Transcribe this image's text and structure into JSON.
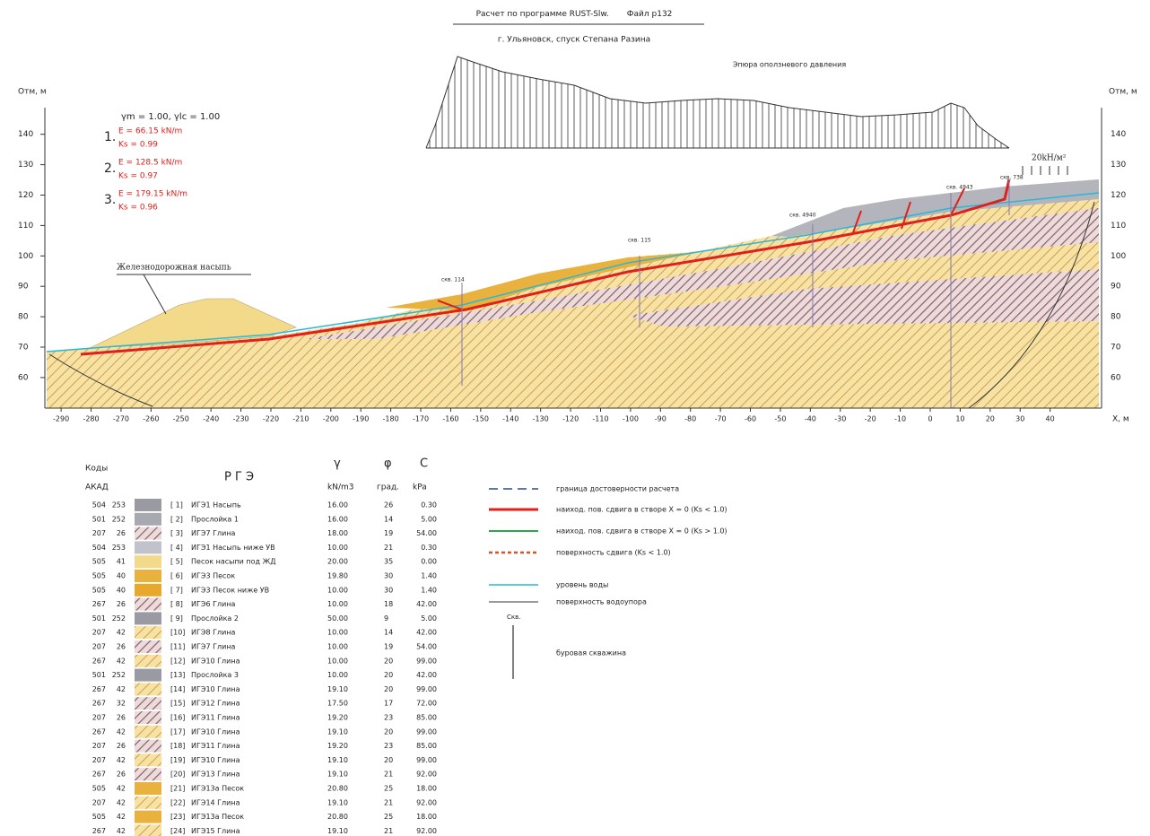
{
  "header": {
    "title": "Расчет по программе RUST-Slw.",
    "file": "Файл p132",
    "location": "г. Ульяновск, спуск Степана Разина"
  },
  "epure": {
    "title": "Эпюра оползневого давления",
    "load": "20kH/м²"
  },
  "axes": {
    "y_label_left": "Отм, м",
    "y_label_right": "Отм, м",
    "x_label": "X, м",
    "yticks": [
      60,
      70,
      80,
      90,
      100,
      110,
      120,
      130,
      140
    ],
    "xticks": [
      -290,
      -280,
      -270,
      -260,
      -250,
      -240,
      -230,
      -220,
      -210,
      -200,
      -190,
      -180,
      -170,
      -160,
      -150,
      -140,
      -130,
      -120,
      -110,
      -100,
      -90,
      -80,
      -70,
      -60,
      -50,
      -40,
      -30,
      -20,
      -10,
      0,
      10,
      20,
      30,
      40
    ]
  },
  "factors": "γm = 1.00, γlc = 1.00",
  "results": [
    {
      "number": "1.",
      "E": "E = 66.15 kN/m",
      "Ks": "Ks = 0.99"
    },
    {
      "number": "2.",
      "E": "E = 128.5 kN/m",
      "Ks": "Ks = 0.97"
    },
    {
      "number": "3.",
      "E": "E = 179.15 kN/m",
      "Ks": "Ks = 0.96"
    }
  ],
  "embankment": "Железнодорожная насыпь",
  "boreholes": [
    "скв. 114",
    "скв. 115",
    "скв. 4940",
    "скв. 4943",
    "скв. 738"
  ],
  "soil_table": {
    "codes": "Коды",
    "acad": "АКАД",
    "rge": "Р Г Э",
    "gamma": "γ",
    "phi": "φ",
    "c": "C",
    "gamma_unit": "kN/m3",
    "phi_unit": "град.",
    "c_unit": "kPa",
    "rows": [
      [
        "504",
        "253",
        "[ 1]",
        "ИГЭ1 Насыпь",
        "16.00",
        "26",
        "0.30"
      ],
      [
        "501",
        "252",
        "[ 2]",
        "Прослойка 1",
        "16.00",
        "14",
        "5.00"
      ],
      [
        "207",
        "26",
        "[ 3]",
        "ИГЭ7 Глина",
        "18.00",
        "19",
        "54.00"
      ],
      [
        "504",
        "253",
        "[ 4]",
        "ИГЭ1 Насыпь ниже УВ",
        "10.00",
        "21",
        "0.30"
      ],
      [
        "505",
        "41",
        "[ 5]",
        "Песок насыпи под ЖД",
        "20.00",
        "35",
        "0.00"
      ],
      [
        "505",
        "40",
        "[ 6]",
        "ИГЭ3 Песок",
        "19.80",
        "30",
        "1.40"
      ],
      [
        "505",
        "40",
        "[ 7]",
        "ИГЭ3 Песок ниже УВ",
        "10.00",
        "30",
        "1.40"
      ],
      [
        "267",
        "26",
        "[ 8]",
        "ИГЭ6 Глина",
        "10.00",
        "18",
        "42.00"
      ],
      [
        "501",
        "252",
        "[ 9]",
        "Прослойка 2",
        "50.00",
        "9",
        "5.00"
      ],
      [
        "207",
        "42",
        "[10]",
        "ИГЭ8 Глина",
        "10.00",
        "14",
        "42.00"
      ],
      [
        "207",
        "26",
        "[11]",
        "ИГЭ7 Глина",
        "10.00",
        "19",
        "54.00"
      ],
      [
        "267",
        "42",
        "[12]",
        "ИГЭ10 Глина",
        "10.00",
        "20",
        "99.00"
      ],
      [
        "501",
        "252",
        "[13]",
        "Прослойка 3",
        "10.00",
        "20",
        "42.00"
      ],
      [
        "267",
        "42",
        "[14]",
        "ИГЭ10 Глина",
        "19.10",
        "20",
        "99.00"
      ],
      [
        "267",
        "32",
        "[15]",
        "ИГЭ12 Глина",
        "17.50",
        "17",
        "72.00"
      ],
      [
        "207",
        "26",
        "[16]",
        "ИГЭ11 Глина",
        "19.20",
        "23",
        "85.00"
      ],
      [
        "267",
        "42",
        "[17]",
        "ИГЭ10 Глина",
        "19.10",
        "20",
        "99.00"
      ],
      [
        "207",
        "26",
        "[18]",
        "ИГЭ11 Глина",
        "19.20",
        "23",
        "85.00"
      ],
      [
        "207",
        "42",
        "[19]",
        "ИГЭ10 Глина",
        "19.10",
        "20",
        "99.00"
      ],
      [
        "267",
        "26",
        "[20]",
        "ИГЭ13 Глина",
        "19.10",
        "21",
        "92.00"
      ],
      [
        "505",
        "42",
        "[21]",
        "ИГЭ13а Песок",
        "20.80",
        "25",
        "18.00"
      ],
      [
        "207",
        "42",
        "[22]",
        "ИГЭ14 Глина",
        "19.10",
        "21",
        "92.00"
      ],
      [
        "505",
        "42",
        "[23]",
        "ИГЭ13а Песок",
        "20.80",
        "25",
        "18.00"
      ],
      [
        "267",
        "42",
        "[24]",
        "ИГЭ15 Глина",
        "19.10",
        "21",
        "92.00"
      ]
    ]
  },
  "legend": {
    "items": [
      "граница достоверности расчета",
      "наиход. пов. сдвига в створе X = 0 (Ks < 1.0)",
      "наиход. пов. сдвига в створе X = 0 (Ks > 1.0)",
      "поверхность сдвига (Ks < 1.0)",
      "уровень воды",
      "поверхность водоупора"
    ],
    "borehole_mark": "Скв.",
    "borehole": "буровая скважина"
  }
}
